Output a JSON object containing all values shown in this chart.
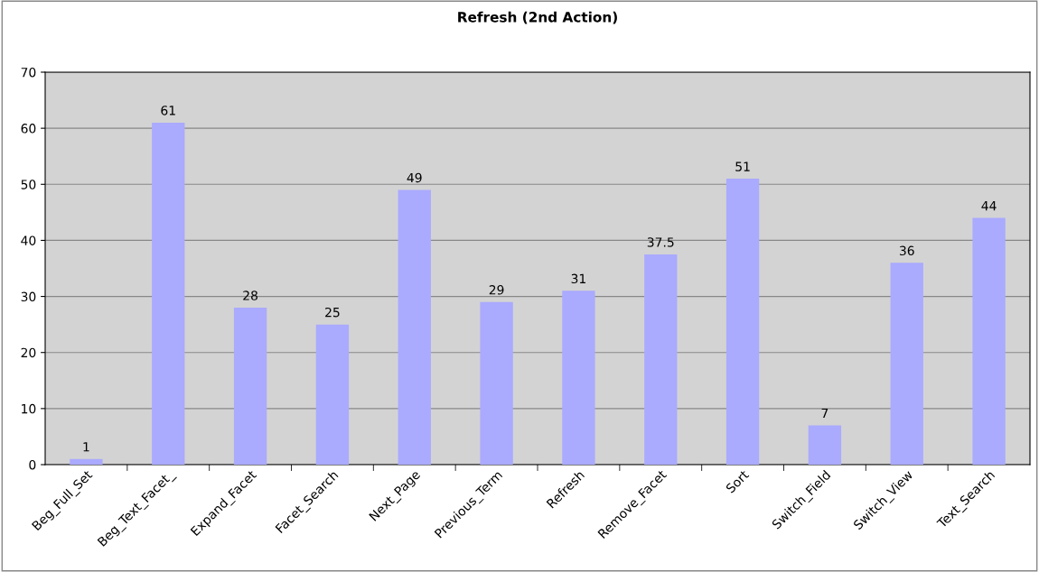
{
  "chart_data": {
    "type": "bar",
    "title": "Refresh (2nd Action)",
    "categories": [
      "Beg_Full_Set",
      "Beg_Text_Facet_",
      "Expand_Facet",
      "Facet_Search",
      "Next_Page",
      "Previous_Term",
      "Refresh",
      "Remove_Facet",
      "Sort",
      "Switch_Field",
      "Switch_View",
      "Text_Search"
    ],
    "values": [
      1,
      61,
      28,
      25,
      49,
      29,
      31,
      37.5,
      51,
      7,
      36,
      44
    ],
    "color": "#aaaaff",
    "ylim": [
      0,
      70
    ],
    "yticks": [
      0,
      10,
      20,
      30,
      40,
      50,
      60,
      70
    ],
    "grid": "y",
    "data_labels": true
  }
}
